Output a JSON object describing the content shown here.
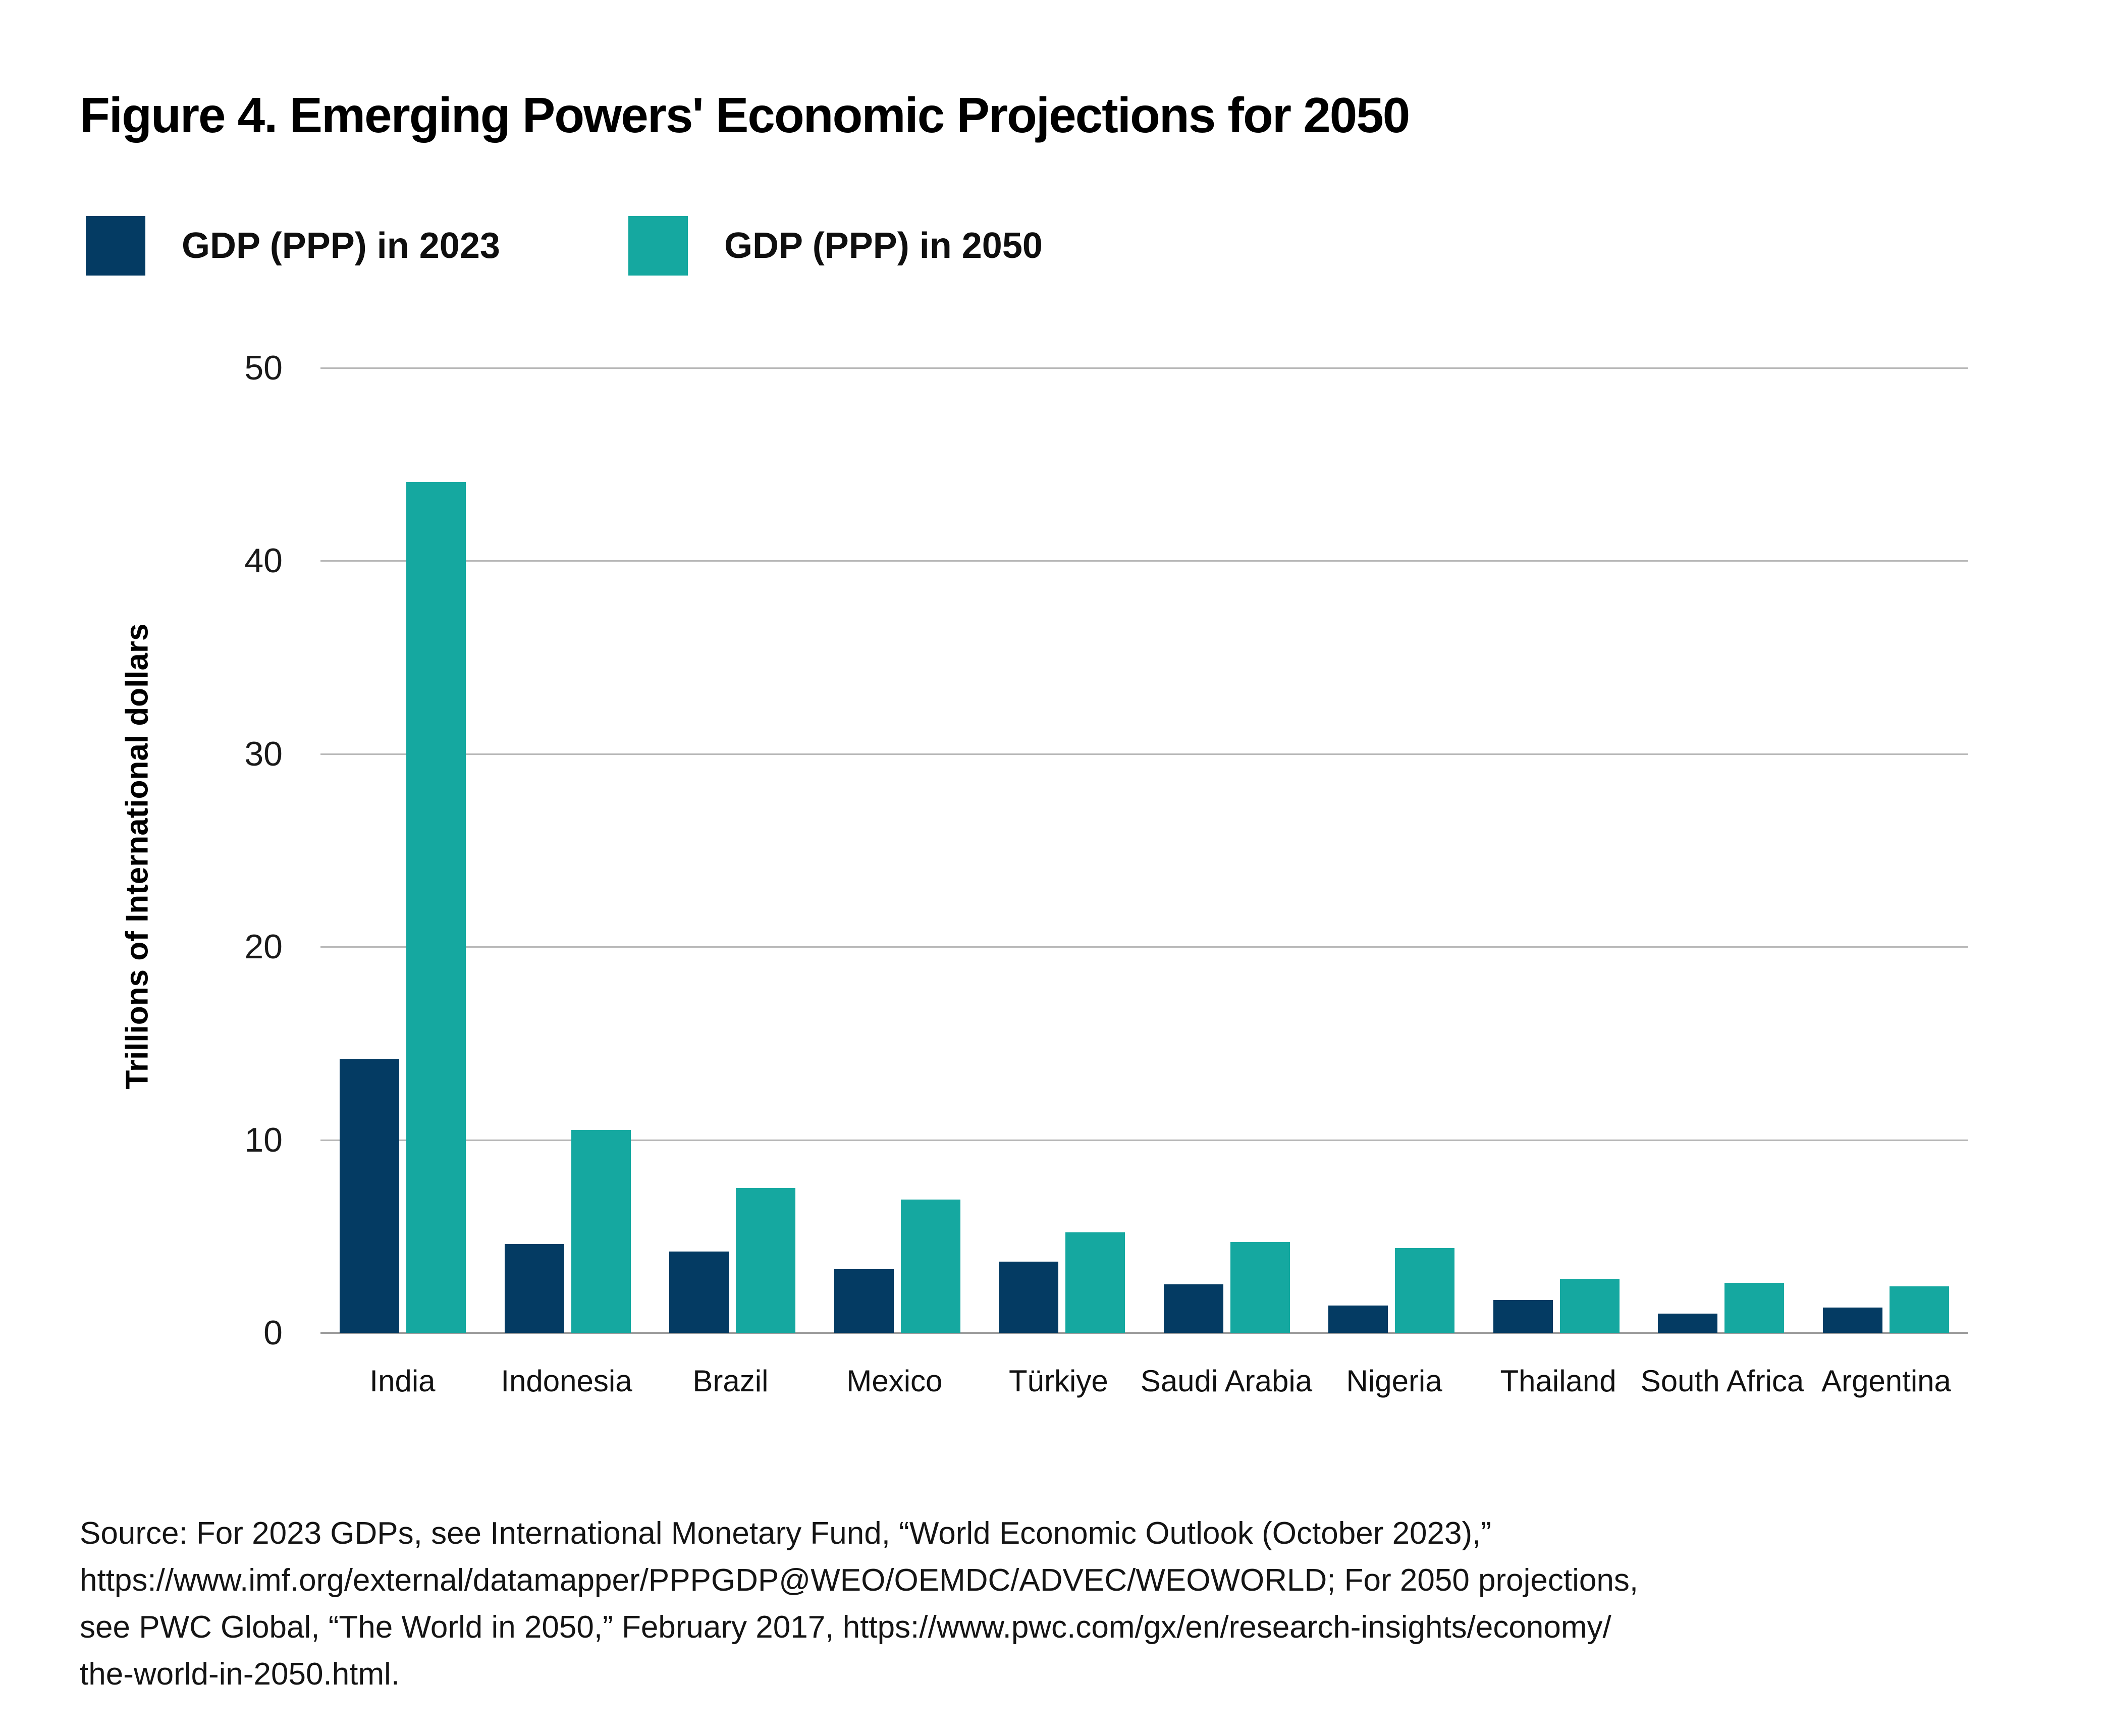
{
  "title": "Figure 4. Emerging Powers' Economic Projections for 2050",
  "legend": {
    "items": [
      {
        "label": "GDP (PPP) in 2023",
        "color": "#043B63"
      },
      {
        "label": "GDP (PPP) in 2050",
        "color": "#15A8A0"
      }
    ]
  },
  "y_axis": {
    "label": "Trillions of International dollars",
    "ticks": [
      0,
      10,
      20,
      30,
      40,
      50
    ],
    "max": 50
  },
  "source": {
    "lines": [
      "Source: For 2023 GDPs, see International Monetary Fund, “World Economic Outlook (October 2023),”",
      "https://www.imf.org/external/datamapper/PPPGDP@WEO/OEMDC/ADVEC/WEOWORLD; For 2050 projections,",
      "see PWC Global, “The World in 2050,” February 2017, https://www.pwc.com/gx/en/research-insights/economy/",
      "the-world-in-2050.html."
    ]
  },
  "colors": {
    "bar_2023": "#043B63",
    "bar_2050": "#15A8A0",
    "gridline": "#b9b9b9",
    "baseline": "#9a9a9a",
    "text": "#111111"
  },
  "chart_data": {
    "type": "bar",
    "title": "Figure 4. Emerging Powers' Economic Projections for 2050",
    "categories": [
      "India",
      "Indonesia",
      "Brazil",
      "Mexico",
      "Türkiye",
      "Saudi Arabia",
      "Nigeria",
      "Thailand",
      "South Africa",
      "Argentina"
    ],
    "series": [
      {
        "name": "GDP (PPP) in 2023",
        "color": "#043B63",
        "values": [
          14.2,
          4.6,
          4.2,
          3.3,
          3.7,
          2.5,
          1.4,
          1.7,
          1.0,
          1.3
        ]
      },
      {
        "name": "GDP (PPP) in 2050",
        "color": "#15A8A0",
        "values": [
          44.1,
          10.5,
          7.5,
          6.9,
          5.2,
          4.7,
          4.4,
          2.8,
          2.6,
          2.4
        ]
      }
    ],
    "xlabel": "",
    "ylabel": "Trillions of International dollars",
    "ylim": [
      0,
      50
    ],
    "grid": true,
    "legend_position": "top-left"
  }
}
